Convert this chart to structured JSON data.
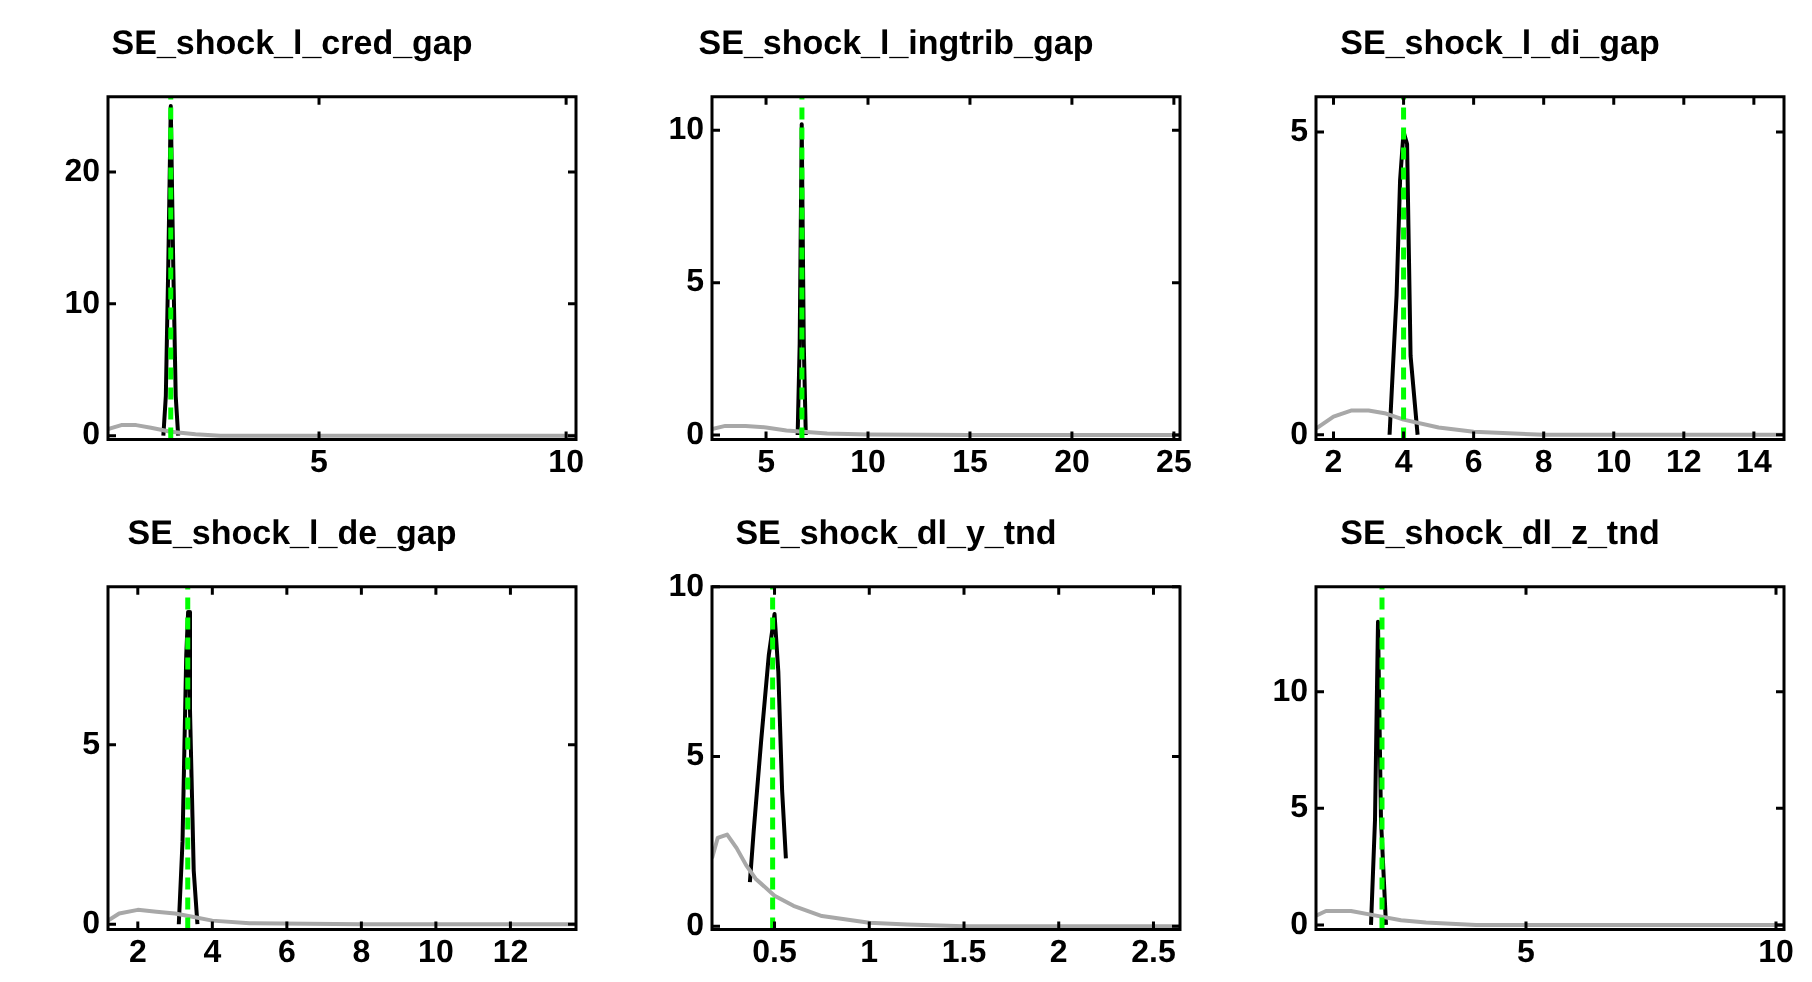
{
  "chart_data": [
    {
      "type": "line",
      "title": "SE_shock_l_cred_gap",
      "marker": "none",
      "grid": false,
      "legend": false,
      "xlim": [
        0.73,
        10.2
      ],
      "xticks": [
        5,
        10
      ],
      "ylim": [
        -0.3,
        25.7
      ],
      "yticks": [
        0,
        10,
        20
      ],
      "series": [
        {
          "color": "#a8a8a8",
          "x": [
            0.73,
            1,
            1.3,
            1.6,
            2,
            2.5,
            3,
            4,
            6,
            10.2
          ],
          "values": [
            0.5,
            0.8,
            0.8,
            0.6,
            0.3,
            0.1,
            0,
            0,
            0,
            0
          ]
        },
        {
          "color": "#000000",
          "x": [
            1.85,
            1.9,
            1.95,
            2.0,
            2.05,
            2.1,
            2.15
          ],
          "values": [
            0,
            3,
            13,
            25,
            13,
            3,
            0
          ]
        }
      ],
      "ref_lines": [
        {
          "axis": "x",
          "value": 2.0,
          "color": "#00ff00",
          "line_style": "dashed"
        }
      ]
    },
    {
      "type": "line",
      "title": "SE_shock_l_ingtrib_gap",
      "marker": "none",
      "grid": false,
      "legend": false,
      "xlim": [
        2.35,
        25.3
      ],
      "xticks": [
        5,
        10,
        15,
        20,
        25
      ],
      "ylim": [
        -0.15,
        11.1
      ],
      "yticks": [
        0,
        5,
        10
      ],
      "series": [
        {
          "color": "#a8a8a8",
          "x": [
            2.35,
            3,
            4,
            5,
            6,
            7,
            8,
            10,
            15,
            25.3
          ],
          "values": [
            0.2,
            0.3,
            0.3,
            0.25,
            0.15,
            0.1,
            0.05,
            0.02,
            0,
            0
          ]
        },
        {
          "color": "#000000",
          "x": [
            6.55,
            6.65,
            6.75,
            6.85,
            6.95
          ],
          "values": [
            0,
            3,
            10.2,
            3,
            0
          ]
        }
      ],
      "ref_lines": [
        {
          "axis": "x",
          "value": 6.76,
          "color": "#00ff00",
          "line_style": "dashed"
        }
      ]
    },
    {
      "type": "line",
      "title": "SE_shock_l_di_gap",
      "marker": "none",
      "grid": false,
      "legend": false,
      "xlim": [
        1.5,
        14.86
      ],
      "xticks": [
        2,
        4,
        6,
        8,
        10,
        12,
        14
      ],
      "ylim": [
        -0.08,
        5.58
      ],
      "yticks": [
        0,
        5
      ],
      "series": [
        {
          "color": "#a8a8a8",
          "x": [
            1.5,
            2,
            2.5,
            3,
            3.5,
            4,
            5,
            6,
            8,
            14.86
          ],
          "values": [
            0.1,
            0.3,
            0.4,
            0.4,
            0.35,
            0.25,
            0.12,
            0.05,
            0,
            0
          ]
        },
        {
          "color": "#000000",
          "x": [
            3.6,
            3.8,
            3.9,
            4.0,
            4.1,
            4.2,
            4.4
          ],
          "values": [
            0,
            2.3,
            4.2,
            5,
            4.8,
            1.3,
            0
          ]
        }
      ],
      "ref_lines": [
        {
          "axis": "x",
          "value": 4.0,
          "color": "#00ff00",
          "line_style": "dashed"
        }
      ]
    },
    {
      "type": "line",
      "title": "SE_shock_l_de_gap",
      "marker": "none",
      "grid": false,
      "legend": false,
      "xlim": [
        1.2,
        13.76
      ],
      "xticks": [
        2,
        4,
        6,
        8,
        10,
        12
      ],
      "ylim": [
        -0.15,
        9.4
      ],
      "yticks": [
        0,
        5
      ],
      "series": [
        {
          "color": "#a8a8a8",
          "x": [
            1.2,
            1.5,
            2,
            2.5,
            3,
            3.5,
            4,
            5,
            8,
            13.76
          ],
          "values": [
            0.1,
            0.3,
            0.4,
            0.35,
            0.3,
            0.2,
            0.1,
            0.03,
            0,
            0
          ]
        },
        {
          "color": "#000000",
          "x": [
            3.1,
            3.2,
            3.3,
            3.35,
            3.4,
            3.5,
            3.6
          ],
          "values": [
            0,
            2.3,
            7.5,
            8.7,
            6,
            1.5,
            0
          ]
        }
      ],
      "ref_lines": [
        {
          "axis": "x",
          "value": 3.34,
          "color": "#00ff00",
          "line_style": "dashed"
        }
      ]
    },
    {
      "type": "line",
      "title": "SE_shock_dl_y_tnd",
      "marker": "none",
      "grid": false,
      "legend": false,
      "xlim": [
        0.17,
        2.64
      ],
      "xticks": [
        0.5,
        1,
        1.5,
        2,
        2.5
      ],
      "ylim": [
        -0.1,
        10
      ],
      "yticks": [
        0,
        5,
        10
      ],
      "series": [
        {
          "color": "#a8a8a8",
          "x": [
            0.17,
            0.2,
            0.25,
            0.3,
            0.35,
            0.4,
            0.5,
            0.6,
            0.75,
            1,
            1.2,
            1.5,
            2.64
          ],
          "values": [
            2,
            2.6,
            2.7,
            2.3,
            1.8,
            1.4,
            0.9,
            0.6,
            0.3,
            0.1,
            0.05,
            0,
            0
          ]
        },
        {
          "color": "#000000",
          "x": [
            0.37,
            0.39,
            0.43,
            0.47,
            0.5,
            0.52,
            0.54,
            0.56
          ],
          "values": [
            1.3,
            2.8,
            5.5,
            8,
            9.2,
            7.5,
            4,
            2
          ]
        }
      ],
      "ref_lines": [
        {
          "axis": "x",
          "value": 0.49,
          "color": "#00ff00",
          "line_style": "dashed"
        }
      ]
    },
    {
      "type": "line",
      "title": "SE_shock_dl_z_tnd",
      "marker": "none",
      "grid": false,
      "legend": false,
      "xlim": [
        0.8,
        10.16
      ],
      "xticks": [
        5,
        10
      ],
      "ylim": [
        -0.2,
        14.5
      ],
      "yticks": [
        0,
        5,
        10
      ],
      "series": [
        {
          "color": "#a8a8a8",
          "x": [
            0.8,
            1,
            1.5,
            2,
            2.5,
            3,
            4,
            6,
            10.16
          ],
          "values": [
            0.4,
            0.6,
            0.6,
            0.4,
            0.2,
            0.1,
            0,
            0,
            0
          ]
        },
        {
          "color": "#000000",
          "x": [
            1.9,
            1.98,
            2.04,
            2.1,
            2.2
          ],
          "values": [
            0,
            4.5,
            13,
            4.5,
            0
          ]
        }
      ],
      "ref_lines": [
        {
          "axis": "x",
          "value": 2.12,
          "color": "#00ff00",
          "line_style": "dashed"
        }
      ]
    }
  ]
}
